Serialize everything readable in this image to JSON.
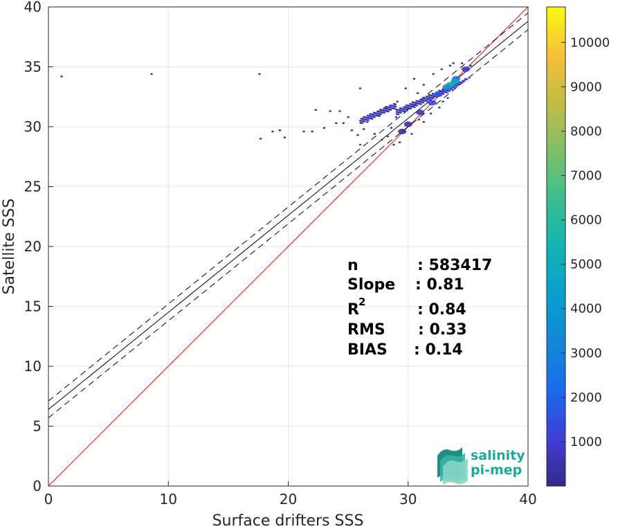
{
  "chart_data": {
    "type": "heatmap",
    "title": "",
    "xlabel": "Surface drifters SSS",
    "ylabel": "Satellite SSS",
    "xlim": [
      0,
      40
    ],
    "ylim": [
      0,
      40
    ],
    "xticks": [
      "0",
      "10",
      "20",
      "30",
      "40"
    ],
    "yticks": [
      "0",
      "5",
      "10",
      "15",
      "20",
      "25",
      "30",
      "35",
      "40"
    ],
    "grid": true,
    "colorbar": {
      "colormap": "parula",
      "range": [
        0,
        10800
      ],
      "ticks": [
        "1000",
        "2000",
        "3000",
        "4000",
        "5000",
        "6000",
        "7000",
        "8000",
        "9000",
        "10000"
      ],
      "tick_values": [
        1000,
        2000,
        3000,
        4000,
        5000,
        6000,
        7000,
        8000,
        9000,
        10000
      ]
    },
    "lines": [
      {
        "name": "1:1",
        "slope": 1.0,
        "intercept": 0.0,
        "color": "#ff0000",
        "style": "solid"
      },
      {
        "name": "fit",
        "slope": 0.81,
        "intercept": 6.4,
        "color": "#000000",
        "style": "solid"
      },
      {
        "name": "fit-upper",
        "slope": 0.81,
        "intercept": 7.1,
        "color": "#000000",
        "style": "dashed"
      },
      {
        "name": "fit-lower",
        "slope": 0.81,
        "intercept": 5.7,
        "color": "#000000",
        "style": "dashed"
      }
    ],
    "density_blobs": [
      {
        "x": 33.5,
        "y": 33.5,
        "value": 5000
      },
      {
        "x": 33.2,
        "y": 33.3,
        "value": 3500
      },
      {
        "x": 34.0,
        "y": 34.0,
        "value": 2500
      },
      {
        "x": 33.9,
        "y": 33.8,
        "value": 4500
      },
      {
        "x": 32.5,
        "y": 32.7,
        "value": 1800
      },
      {
        "x": 32.0,
        "y": 32.0,
        "value": 1200
      },
      {
        "x": 31.0,
        "y": 31.2,
        "value": 600
      },
      {
        "x": 30.0,
        "y": 30.2,
        "value": 300
      },
      {
        "x": 34.8,
        "y": 34.8,
        "value": 800
      },
      {
        "x": 29.5,
        "y": 29.6,
        "value": 200
      }
    ],
    "scatter_cells": [
      {
        "x": 1.1,
        "y": 34.2
      },
      {
        "x": 8.6,
        "y": 34.4
      },
      {
        "x": 17.6,
        "y": 34.4
      },
      {
        "x": 17.7,
        "y": 29.0
      },
      {
        "x": 18.7,
        "y": 29.6
      },
      {
        "x": 19.3,
        "y": 29.7
      },
      {
        "x": 19.7,
        "y": 29.1
      },
      {
        "x": 21.3,
        "y": 29.6
      },
      {
        "x": 22.0,
        "y": 29.6
      },
      {
        "x": 23.5,
        "y": 31.3
      },
      {
        "x": 23.0,
        "y": 29.9
      },
      {
        "x": 24.0,
        "y": 30.3
      },
      {
        "x": 24.6,
        "y": 30.3
      },
      {
        "x": 25.3,
        "y": 29.7
      },
      {
        "x": 25.8,
        "y": 29.3
      },
      {
        "x": 26.3,
        "y": 29.8
      },
      {
        "x": 26.6,
        "y": 30.4
      },
      {
        "x": 27.2,
        "y": 29.4
      },
      {
        "x": 27.8,
        "y": 28.9
      },
      {
        "x": 28.3,
        "y": 29.2
      },
      {
        "x": 26.0,
        "y": 33.2
      },
      {
        "x": 27.6,
        "y": 30.9
      },
      {
        "x": 28.6,
        "y": 29.9
      },
      {
        "x": 29.0,
        "y": 30.8
      },
      {
        "x": 30.0,
        "y": 31.5
      },
      {
        "x": 29.8,
        "y": 33.2
      },
      {
        "x": 30.5,
        "y": 34.0
      },
      {
        "x": 30.8,
        "y": 32.8
      },
      {
        "x": 31.3,
        "y": 33.5
      },
      {
        "x": 31.7,
        "y": 32.3
      },
      {
        "x": 32.1,
        "y": 34.4
      },
      {
        "x": 32.8,
        "y": 34.8
      },
      {
        "x": 33.5,
        "y": 35.1
      },
      {
        "x": 34.5,
        "y": 35.3
      },
      {
        "x": 35.2,
        "y": 35.1
      },
      {
        "x": 28.8,
        "y": 28.5
      },
      {
        "x": 29.3,
        "y": 28.7
      },
      {
        "x": 30.3,
        "y": 29.4
      },
      {
        "x": 31.3,
        "y": 30.4
      },
      {
        "x": 32.6,
        "y": 31.6
      },
      {
        "x": 33.3,
        "y": 32.4
      },
      {
        "x": 34.2,
        "y": 33.5
      },
      {
        "x": 30.9,
        "y": 30.6
      },
      {
        "x": 31.9,
        "y": 31.1
      },
      {
        "x": 32.9,
        "y": 32.1
      },
      {
        "x": 25.0,
        "y": 30.8
      },
      {
        "x": 24.3,
        "y": 31.3
      },
      {
        "x": 22.3,
        "y": 31.4
      },
      {
        "x": 28.1,
        "y": 31.6
      },
      {
        "x": 29.1,
        "y": 32.1
      }
    ],
    "stats": [
      {
        "label": "n",
        "value": ": 583417"
      },
      {
        "label": "Slope",
        "value": ": 0.81"
      },
      {
        "label": "R",
        "sup": "2",
        "value": ": 0.84"
      },
      {
        "label": "RMS",
        "value": ": 0.33"
      },
      {
        "label": "BIAS",
        "value": ": 0.14"
      }
    ]
  },
  "logo": {
    "line1": "salinity",
    "line2": "pi-mep",
    "color": "#1aa89a"
  }
}
